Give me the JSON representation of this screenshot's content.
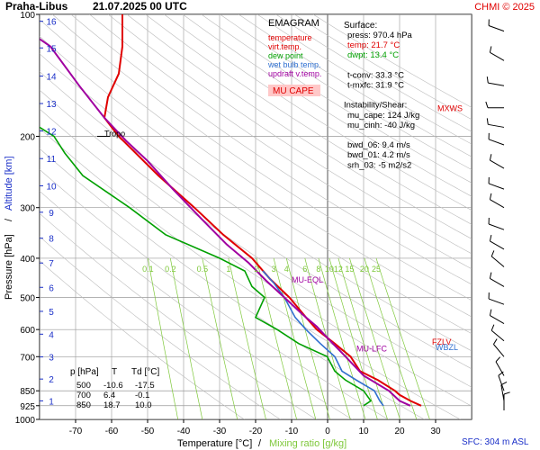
{
  "header": {
    "station": "Praha-Libus",
    "datetime": "21.07.2025 00 UTC",
    "credit": "CHMI © 2025"
  },
  "chart_data": {
    "type": "line",
    "chart_kind": "EMAGRAM",
    "xlabel_parts": {
      "temp": "Temperature [°C]",
      "sep": "/",
      "mix": "Mixing ratio [g/kg]"
    },
    "ylabel_parts": {
      "press": "Pressure [hPa]",
      "sep": "/",
      "alt": "Altitude [km]"
    },
    "y_scale": "log",
    "xlim": [
      -80,
      40
    ],
    "ylim": [
      1000,
      100
    ],
    "x_ticks": [
      -70,
      -60,
      -50,
      -40,
      -30,
      -20,
      -10,
      0,
      10,
      20,
      30
    ],
    "pressure_ticks": [
      100,
      200,
      300,
      400,
      500,
      600,
      700,
      850,
      925,
      1000
    ],
    "altitude_ticks": [
      {
        "km": "1",
        "p": 900
      },
      {
        "km": "2",
        "p": 795
      },
      {
        "km": "3",
        "p": 701
      },
      {
        "km": "4",
        "p": 616
      },
      {
        "km": "5",
        "p": 541
      },
      {
        "km": "6",
        "p": 472
      },
      {
        "km": "7",
        "p": 411
      },
      {
        "km": "8",
        "p": 357
      },
      {
        "km": "9",
        "p": 308
      },
      {
        "km": "10",
        "p": 265
      },
      {
        "km": "11",
        "p": 227
      },
      {
        "km": "12",
        "p": 194
      },
      {
        "km": "13",
        "p": 166
      },
      {
        "km": "14",
        "p": 142
      },
      {
        "km": "15",
        "p": 121
      },
      {
        "km": "16",
        "p": 104
      }
    ],
    "mixing_ratio_labels": [
      "0.1",
      "0.2",
      "0.5",
      "1",
      "2",
      "3",
      "4",
      "6",
      "8",
      "10",
      "12",
      "15",
      "20",
      "25"
    ],
    "legend": [
      {
        "label": "temperature",
        "color": "#e00000"
      },
      {
        "label": "virt.temp.",
        "color": "#e00000"
      },
      {
        "label": "dew point",
        "color": "#00a000"
      },
      {
        "label": "wet bulb temp.",
        "color": "#3070d0"
      },
      {
        "label": "updraft v.temp.",
        "color": "#a000a0"
      }
    ],
    "mu_cape_label": "MU CAPE",
    "series": [
      {
        "name": "temperature",
        "color": "#e00000",
        "points": [
          [
            26,
            925
          ],
          [
            23,
            900
          ],
          [
            20,
            870
          ],
          [
            18.7,
            850
          ],
          [
            14,
            800
          ],
          [
            9,
            760
          ],
          [
            6.4,
            700
          ],
          [
            2,
            650
          ],
          [
            -3,
            600
          ],
          [
            -6,
            560
          ],
          [
            -10.6,
            500
          ],
          [
            -16,
            450
          ],
          [
            -21,
            400
          ],
          [
            -29,
            350
          ],
          [
            -37,
            300
          ],
          [
            -47,
            250
          ],
          [
            -58,
            200
          ],
          [
            -62,
            180
          ],
          [
            -61,
            160
          ],
          [
            -58,
            140
          ],
          [
            -57,
            120
          ],
          [
            -57,
            100
          ]
        ]
      },
      {
        "name": "dew point",
        "color": "#00a000",
        "points": [
          [
            10,
            925
          ],
          [
            12,
            900
          ],
          [
            10,
            850
          ],
          [
            5,
            800
          ],
          [
            2,
            760
          ],
          [
            -0.1,
            700
          ],
          [
            -8,
            650
          ],
          [
            -14,
            600
          ],
          [
            -20,
            560
          ],
          [
            -17.5,
            500
          ],
          [
            -21,
            470
          ],
          [
            -23,
            430
          ],
          [
            -30,
            400
          ],
          [
            -45,
            350
          ],
          [
            -55,
            300
          ],
          [
            -68,
            250
          ],
          [
            -73,
            220
          ],
          [
            -76,
            200
          ],
          [
            -80,
            190
          ]
        ]
      },
      {
        "name": "wet bulb temp.",
        "color": "#3070d0",
        "points": [
          [
            15.5,
            925
          ],
          [
            14.5,
            900
          ],
          [
            13,
            850
          ],
          [
            8,
            800
          ],
          [
            4,
            760
          ],
          [
            2,
            700
          ],
          [
            -2,
            650
          ],
          [
            -6,
            600
          ],
          [
            -9,
            560
          ],
          [
            -12,
            500
          ],
          [
            -15,
            460
          ],
          [
            -18,
            430
          ]
        ]
      },
      {
        "name": "updraft v.temp.",
        "color": "#a000a0",
        "points": [
          [
            23,
            925
          ],
          [
            20,
            900
          ],
          [
            17,
            850
          ],
          [
            10,
            780
          ],
          [
            5,
            700
          ],
          [
            0,
            630
          ],
          [
            -3,
            590
          ],
          [
            -7,
            550
          ],
          [
            -12,
            500
          ],
          [
            -17,
            455
          ],
          [
            -22,
            410
          ],
          [
            -28,
            370
          ],
          [
            -35,
            320
          ],
          [
            -43,
            270
          ],
          [
            -50,
            230
          ],
          [
            -56,
            205
          ],
          [
            -62,
            180
          ],
          [
            -69,
            150
          ],
          [
            -77,
            120
          ],
          [
            -80,
            115
          ]
        ]
      }
    ],
    "table": {
      "headers": [
        "p [hPa]",
        "T",
        "Td [°C]"
      ],
      "rows": [
        [
          "500",
          "-10.6",
          "-17.5"
        ],
        [
          "700",
          "6.4",
          "-0.1"
        ],
        [
          "850",
          "18.7",
          "10.0"
        ]
      ]
    },
    "annotations": [
      {
        "text": "Tropo",
        "p": 200,
        "t": -62,
        "color": "#000000"
      },
      {
        "text": "MU-EQL",
        "p": 460,
        "t": -10,
        "color": "#a000a0"
      },
      {
        "text": "MU-LFC",
        "p": 680,
        "t": 8,
        "color": "#a000a0"
      },
      {
        "text": "FZLV",
        "p": 640,
        "t": 25,
        "color": "#e00000"
      },
      {
        "text": "WBZL",
        "p": 660,
        "t": 25,
        "color": "#3070d0"
      },
      {
        "text": "MXWS",
        "p": 170,
        "t": 28,
        "color": "#e00000"
      }
    ],
    "sfc_label": "SFC: 304 m ASL"
  },
  "info": {
    "surface_title": "Surface:",
    "lines": [
      {
        "text": "press: 970.4 hPa",
        "color": "#000000"
      },
      {
        "text": "temp: 21.7 °C",
        "color": "#e00000"
      },
      {
        "text": "dwpt: 13.4 °C",
        "color": "#00a000"
      },
      {
        "text": "",
        "color": "#000000"
      },
      {
        "text": "t-conv: 33.3 °C",
        "color": "#000000"
      },
      {
        "text": "t-mxfc: 31.9 °C",
        "color": "#000000"
      },
      {
        "text": "",
        "color": "#000000"
      },
      {
        "text": "Instability/Shear:",
        "color": "#000000"
      },
      {
        "text": "mu_cape: 124 J/kg",
        "color": "#000000"
      },
      {
        "text": "mu_cinh: -40 J/kg",
        "color": "#000000"
      },
      {
        "text": "",
        "color": "#000000"
      },
      {
        "text": "bwd_06: 9.4 m/s",
        "color": "#000000"
      },
      {
        "text": "bwd_01: 4.2 m/s",
        "color": "#000000"
      },
      {
        "text": "srh_03: -5 m2/s2",
        "color": "#000000"
      }
    ]
  },
  "wind_profile": {
    "barbs": [
      {
        "p": 110,
        "dir": 290
      },
      {
        "p": 130,
        "dir": 300
      },
      {
        "p": 150,
        "dir": 280
      },
      {
        "p": 170,
        "dir": 270
      },
      {
        "p": 190,
        "dir": 280
      },
      {
        "p": 210,
        "dir": 290
      },
      {
        "p": 240,
        "dir": 300
      },
      {
        "p": 270,
        "dir": 290
      },
      {
        "p": 300,
        "dir": 300
      },
      {
        "p": 340,
        "dir": 290
      },
      {
        "p": 380,
        "dir": 300
      },
      {
        "p": 420,
        "dir": 310
      },
      {
        "p": 470,
        "dir": 300
      },
      {
        "p": 520,
        "dir": 290
      },
      {
        "p": 580,
        "dir": 300
      },
      {
        "p": 640,
        "dir": 310
      },
      {
        "p": 700,
        "dir": 320
      },
      {
        "p": 780,
        "dir": 330
      },
      {
        "p": 850,
        "dir": 340
      },
      {
        "p": 900,
        "dir": 350
      },
      {
        "p": 950,
        "dir": 360
      }
    ]
  },
  "colors": {
    "temperature": "#e00000",
    "dewpoint": "#00a000",
    "wetbulb": "#3070d0",
    "updraft": "#a000a0",
    "altitude_axis": "#1a2fc8",
    "mixing_ratio": "#7ec83a",
    "isotherm": "#999999",
    "isobar": "#999999",
    "dry_adiabat": "#bbbbbb"
  }
}
